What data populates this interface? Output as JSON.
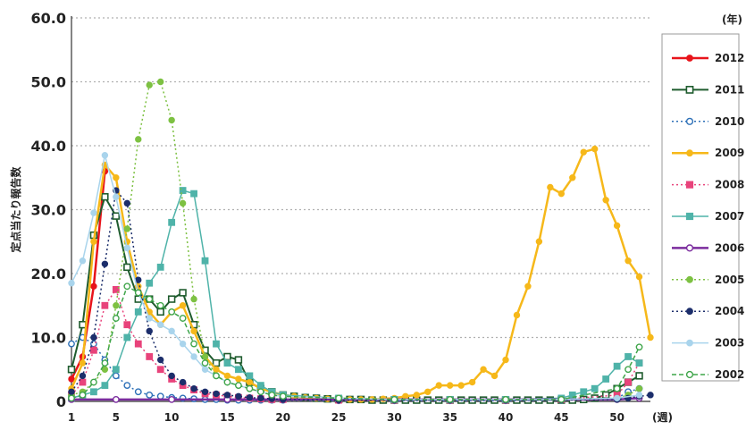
{
  "chart_data": {
    "type": "line",
    "title": "",
    "ylabel": "定点当たり報告数",
    "xunit": "(週)",
    "legend_unit": "(年)",
    "xlim": [
      1,
      53
    ],
    "ylim": [
      0,
      60
    ],
    "yticks": [
      0,
      10.0,
      20.0,
      30.0,
      40.0,
      50.0,
      60.0
    ],
    "ytick_labels": [
      "0",
      "10.0",
      "20.0",
      "30.0",
      "40.0",
      "50.0",
      "60.0"
    ],
    "xticks": [
      1,
      5,
      10,
      15,
      20,
      25,
      30,
      35,
      40,
      45,
      50
    ],
    "grid": true,
    "legend_position": "right",
    "series": [
      {
        "name": "2012",
        "color": "#e8141b",
        "marker": "circle-filled",
        "dash": "solid",
        "width": 2.5,
        "x": [
          1,
          2,
          3,
          4
        ],
        "values": [
          3.5,
          7,
          18,
          36
        ]
      },
      {
        "name": "2011",
        "color": "#1f5c2e",
        "marker": "square-open",
        "dash": "solid",
        "width": 2,
        "x": [
          1,
          2,
          3,
          4,
          5,
          6,
          7,
          8,
          9,
          10,
          11,
          12,
          13,
          14,
          15,
          16,
          17,
          18,
          19,
          20,
          21,
          22,
          23,
          24,
          25,
          26,
          27,
          28,
          29,
          30,
          31,
          32,
          33,
          34,
          35,
          36,
          37,
          38,
          39,
          40,
          41,
          42,
          43,
          44,
          45,
          46,
          47,
          48,
          49,
          50,
          51,
          52
        ],
        "values": [
          5,
          12,
          26,
          32,
          29,
          21,
          16,
          16,
          14,
          16,
          17,
          12,
          8,
          6,
          7,
          6.5,
          3,
          2,
          1.5,
          1,
          0.8,
          0.6,
          0.5,
          0.4,
          0.3,
          0.3,
          0.3,
          0.2,
          0.2,
          0.2,
          0.2,
          0.2,
          0.2,
          0.2,
          0.2,
          0.2,
          0.2,
          0.2,
          0.2,
          0.2,
          0.2,
          0.2,
          0.2,
          0.2,
          0.2,
          0.2,
          0.3,
          0.5,
          1,
          2,
          3,
          4
        ]
      },
      {
        "name": "2010",
        "color": "#2c6fb7",
        "marker": "circle-open",
        "dash": "dot",
        "width": 1.5,
        "x": [
          1,
          2,
          3,
          4,
          5,
          6,
          7,
          8,
          9,
          10,
          11,
          12,
          13,
          14,
          15,
          16,
          17,
          18,
          19,
          20,
          25,
          30,
          35,
          40,
          45,
          50,
          51,
          52
        ],
        "values": [
          9,
          10,
          9,
          6.5,
          4,
          2.5,
          1.5,
          1,
          0.8,
          0.6,
          0.5,
          0.4,
          0.3,
          0.3,
          0.2,
          0.2,
          0.2,
          0.2,
          0.2,
          0.2,
          0.1,
          0.1,
          0.1,
          0.1,
          0.2,
          0.5,
          1.5,
          2
        ]
      },
      {
        "name": "2009",
        "color": "#f6b81a",
        "marker": "circle-filled",
        "dash": "solid",
        "width": 2.5,
        "x": [
          1,
          2,
          3,
          4,
          5,
          6,
          7,
          8,
          9,
          10,
          11,
          12,
          13,
          14,
          15,
          16,
          17,
          18,
          19,
          20,
          21,
          22,
          23,
          24,
          25,
          26,
          27,
          28,
          29,
          30,
          31,
          32,
          33,
          34,
          35,
          36,
          37,
          38,
          39,
          40,
          41,
          42,
          43,
          44,
          45,
          46,
          47,
          48,
          49,
          50,
          51,
          52,
          53
        ],
        "values": [
          2,
          6,
          25,
          37,
          35,
          25,
          18,
          14,
          12,
          14,
          15,
          11,
          7,
          5,
          4,
          3.5,
          3,
          2,
          1.5,
          1,
          0.8,
          0.6,
          0.5,
          0.4,
          0.3,
          0.3,
          0.3,
          0.3,
          0.4,
          0.5,
          0.8,
          1,
          1.5,
          2.5,
          2.5,
          2.5,
          3,
          5,
          4,
          6.5,
          13.5,
          18,
          25,
          33.5,
          32.5,
          35,
          39,
          39.5,
          31.5,
          27.5,
          22,
          19.5,
          10
        ]
      },
      {
        "name": "2008",
        "color": "#e8437b",
        "marker": "square-filled",
        "dash": "dot",
        "width": 1.5,
        "x": [
          1,
          2,
          3,
          4,
          5,
          6,
          7,
          8,
          9,
          10,
          11,
          12,
          13,
          14,
          15,
          16,
          17,
          18,
          19,
          20,
          25,
          30,
          35,
          40,
          45,
          50,
          51,
          52
        ],
        "values": [
          1,
          3,
          8,
          15,
          17.5,
          12,
          9,
          7,
          5,
          3.5,
          2.5,
          1.8,
          1.2,
          1,
          0.8,
          0.6,
          0.5,
          0.4,
          0.3,
          0.3,
          0.2,
          0.2,
          0.2,
          0.2,
          0.3,
          1,
          3,
          6
        ]
      },
      {
        "name": "2007",
        "color": "#4fb3a9",
        "marker": "square-filled",
        "dash": "solid",
        "width": 1.5,
        "x": [
          1,
          2,
          3,
          4,
          5,
          6,
          7,
          8,
          9,
          10,
          11,
          12,
          13,
          14,
          15,
          16,
          17,
          18,
          19,
          20,
          25,
          30,
          35,
          40,
          45,
          46,
          47,
          48,
          49,
          50,
          51,
          52
        ],
        "values": [
          0.5,
          1,
          1.5,
          2.5,
          5,
          10,
          14,
          18.5,
          21,
          28,
          33,
          32.5,
          22,
          9,
          6,
          5,
          4,
          2.5,
          1.5,
          1,
          0.5,
          0.3,
          0.3,
          0.3,
          0.5,
          1,
          1.5,
          2,
          3.5,
          5.5,
          7,
          6
        ]
      },
      {
        "name": "2006",
        "color": "#7b2c9e",
        "marker": "circle-open",
        "dash": "solid",
        "width": 2.5,
        "x": [
          1,
          5,
          10,
          15,
          20,
          25,
          30,
          35,
          40,
          45,
          50,
          52
        ],
        "values": [
          0.3,
          0.3,
          0.3,
          0.3,
          0.3,
          0.3,
          0.3,
          0.3,
          0.3,
          0.3,
          0.3,
          0.5
        ]
      },
      {
        "name": "2005",
        "color": "#7dc142",
        "marker": "circle-filled",
        "dash": "dot",
        "width": 1.5,
        "x": [
          1,
          2,
          3,
          4,
          5,
          6,
          7,
          8,
          9,
          10,
          11,
          12,
          13,
          14,
          15,
          16,
          17,
          18,
          19,
          20,
          25,
          30,
          35,
          40,
          45,
          50,
          51,
          52
        ],
        "values": [
          1,
          1.5,
          3,
          5,
          15,
          27,
          41,
          49.5,
          50,
          44,
          31,
          16,
          7,
          4,
          3,
          2.5,
          2,
          1.5,
          1,
          0.8,
          0.5,
          0.3,
          0.3,
          0.3,
          0.3,
          0.5,
          1,
          2
        ]
      },
      {
        "name": "2004",
        "color": "#1c2e6b",
        "marker": "circle-filled",
        "dash": "dot",
        "width": 1.5,
        "x": [
          1,
          2,
          3,
          4,
          5,
          6,
          7,
          8,
          9,
          10,
          11,
          12,
          13,
          14,
          15,
          16,
          17,
          18,
          19,
          20,
          25,
          30,
          35,
          40,
          45,
          50,
          51,
          52,
          53
        ],
        "values": [
          1.5,
          4,
          10,
          21.5,
          33,
          31,
          19,
          11,
          6.5,
          4,
          3,
          2,
          1.5,
          1.2,
          1,
          0.8,
          0.6,
          0.5,
          0.4,
          0.3,
          0.2,
          0.2,
          0.2,
          0.2,
          0.2,
          0.3,
          0.5,
          0.8,
          1
        ]
      },
      {
        "name": "2003",
        "color": "#a9d4ec",
        "marker": "circle-filled",
        "dash": "solid",
        "width": 1.5,
        "x": [
          1,
          2,
          3,
          4,
          5,
          6,
          7,
          8,
          9,
          10,
          11,
          12,
          13,
          14,
          15,
          16,
          17,
          18,
          19,
          20,
          25,
          30,
          35,
          40,
          45,
          50,
          52
        ],
        "values": [
          18.5,
          22,
          29.5,
          38.5,
          32,
          24,
          17,
          13,
          12,
          11,
          9,
          7,
          5,
          4,
          3,
          2.5,
          2,
          1.5,
          1,
          0.8,
          0.5,
          0.3,
          0.3,
          0.3,
          0.3,
          0.5,
          1
        ]
      },
      {
        "name": "2002",
        "color": "#3fa54a",
        "marker": "circle-open",
        "dash": "dash",
        "width": 1.5,
        "x": [
          1,
          2,
          3,
          4,
          5,
          6,
          7,
          8,
          9,
          10,
          11,
          12,
          13,
          14,
          15,
          16,
          17,
          18,
          19,
          20,
          25,
          30,
          35,
          40,
          45,
          50,
          51,
          52
        ],
        "values": [
          0.5,
          1,
          3,
          6,
          13,
          18,
          17,
          16,
          15,
          14,
          13,
          9,
          6,
          4,
          3,
          2.5,
          2,
          1.5,
          1,
          0.8,
          0.5,
          0.3,
          0.3,
          0.3,
          0.3,
          2,
          5,
          8.5
        ]
      }
    ]
  }
}
